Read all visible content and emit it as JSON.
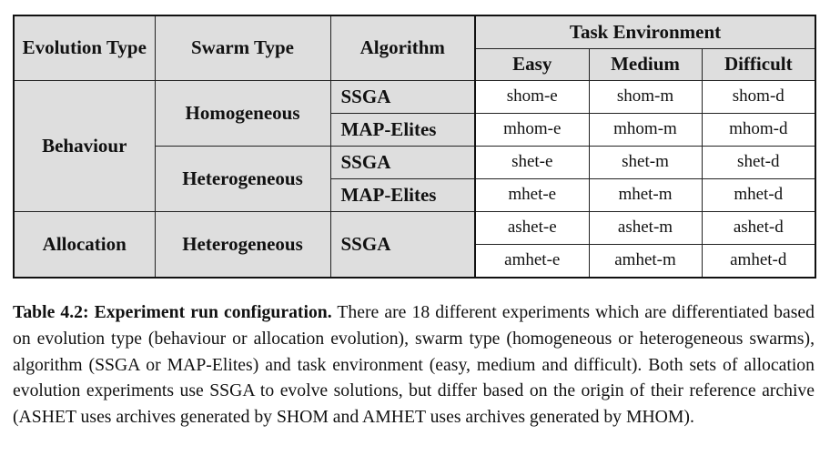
{
  "table": {
    "headers": {
      "evolution_type": "Evolution Type",
      "swarm_type": "Swarm Type",
      "algorithm": "Algorithm",
      "task_environment": "Task Environment",
      "easy": "Easy",
      "medium": "Medium",
      "difficult": "Difficult"
    },
    "groups": [
      {
        "evolution_type": "Behaviour",
        "swarms": [
          {
            "swarm_type": "Homogeneous",
            "rows": [
              {
                "algorithm": "SSGA",
                "easy": "shom-e",
                "medium": "shom-m",
                "difficult": "shom-d"
              },
              {
                "algorithm": "MAP-Elites",
                "easy": "mhom-e",
                "medium": "mhom-m",
                "difficult": "mhom-d"
              }
            ]
          },
          {
            "swarm_type": "Heterogeneous",
            "rows": [
              {
                "algorithm": "SSGA",
                "easy": "shet-e",
                "medium": "shet-m",
                "difficult": "shet-d"
              },
              {
                "algorithm": "MAP-Elites",
                "easy": "mhet-e",
                "medium": "mhet-m",
                "difficult": "mhet-d"
              }
            ]
          }
        ]
      },
      {
        "evolution_type": "Allocation",
        "swarms": [
          {
            "swarm_type": "Heterogeneous",
            "algorithm": "SSGA",
            "rows": [
              {
                "easy": "ashet-e",
                "medium": "ashet-m",
                "difficult": "ashet-d"
              },
              {
                "easy": "amhet-e",
                "medium": "amhet-m",
                "difficult": "amhet-d"
              }
            ]
          }
        ]
      }
    ]
  },
  "caption": {
    "label": "Table 4.2: Experiment run configuration.",
    "text": "There are 18 different experiments which are differentiated based on evolution type (behaviour or allocation evolution), swarm type (homogeneous or heterogeneous swarms), algorithm (SSGA or MAP-Elites) and task environment (easy, medium and difficult). Both sets of allocation evolution experiments use SSGA to evolve solutions, but differ based on the origin of their reference archive (ASHET uses archives generated by SHOM and AMHET uses archives generated by MHOM)."
  }
}
